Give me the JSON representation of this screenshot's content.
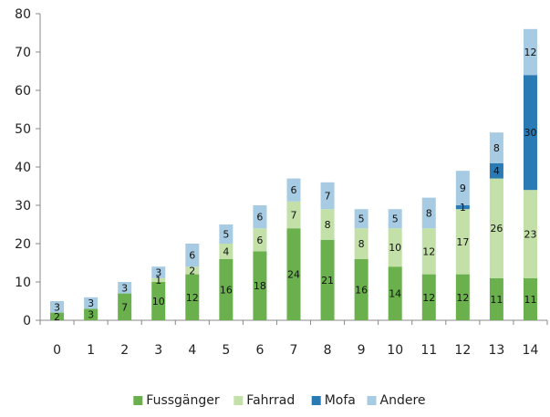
{
  "chart_data": {
    "type": "bar",
    "stacked": true,
    "title": "",
    "xlabel": "",
    "ylabel": "",
    "categories": [
      "0",
      "1",
      "2",
      "3",
      "4",
      "5",
      "6",
      "7",
      "8",
      "9",
      "10",
      "11",
      "12",
      "13",
      "14"
    ],
    "ylim": [
      0,
      80
    ],
    "yticks": [
      0,
      10,
      20,
      30,
      40,
      50,
      60,
      70,
      80
    ],
    "grid": false,
    "legend_position": "bottom",
    "series": [
      {
        "name": "Fussgänger",
        "color": "#6ab04c",
        "values": [
          2,
          3,
          7,
          10,
          12,
          16,
          18,
          24,
          21,
          16,
          14,
          12,
          12,
          11,
          11
        ]
      },
      {
        "name": "Fahrrad",
        "color": "#c2e0a8",
        "values": [
          0,
          0,
          0,
          1,
          2,
          4,
          6,
          7,
          8,
          8,
          10,
          12,
          17,
          26,
          23
        ]
      },
      {
        "name": "Mofa",
        "color": "#2a7ab3",
        "values": [
          0,
          0,
          0,
          0,
          0,
          0,
          0,
          0,
          0,
          0,
          0,
          0,
          1,
          4,
          30
        ]
      },
      {
        "name": "Andere",
        "color": "#a7cbe2",
        "values": [
          3,
          3,
          3,
          3,
          6,
          5,
          6,
          6,
          7,
          5,
          5,
          8,
          9,
          8,
          12
        ]
      }
    ]
  }
}
